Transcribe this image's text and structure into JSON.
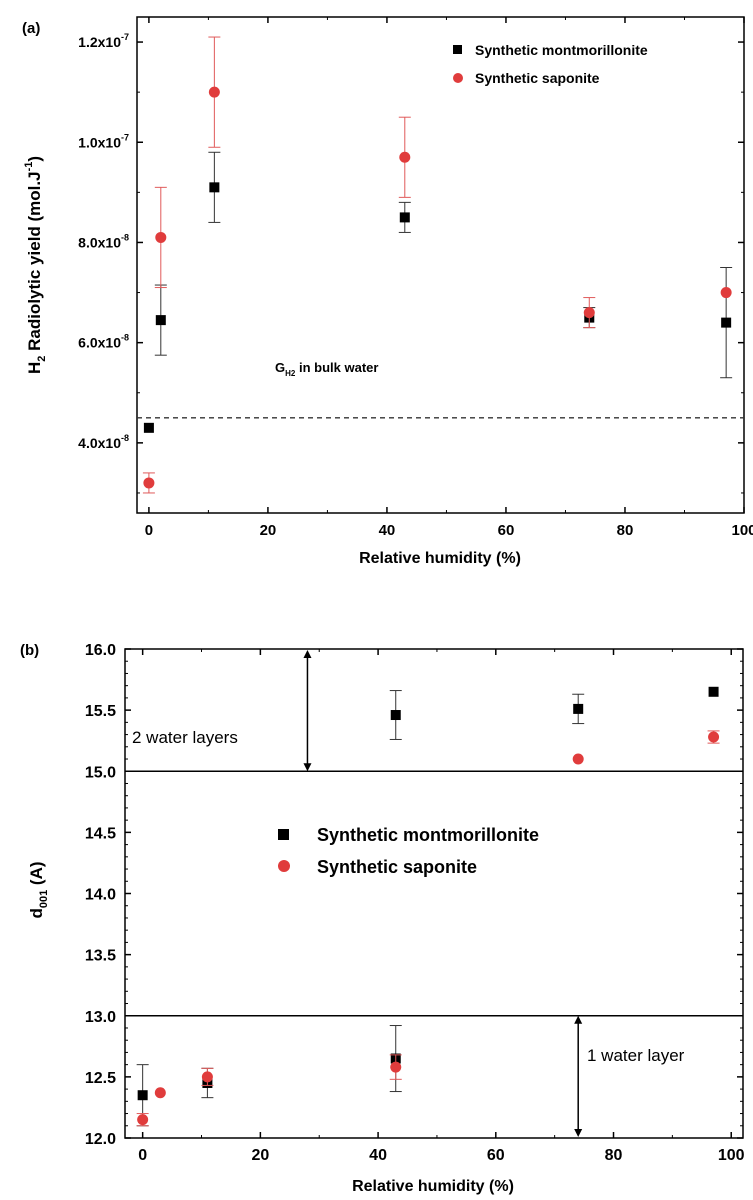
{
  "chart_data": [
    {
      "panel": "(a)",
      "type": "scatter",
      "xlabel": "Relative humidity (%)",
      "ylabel": "H2 Radiolytic yield (mol.J-1)",
      "ylabel_parts": {
        "base": "H",
        "sub": "2",
        "mid": " Radiolytic yield (mol.J",
        "sup": "-1",
        "end": ")"
      },
      "xlim": [
        -2,
        100
      ],
      "ylim": [
        2.6e-08,
        1.25e-07
      ],
      "xticks": [
        "0",
        "20",
        "40",
        "60",
        "80",
        "100"
      ],
      "xtick_values": [
        0,
        20,
        40,
        60,
        80,
        100
      ],
      "yticks": [
        {
          "value": 4e-08,
          "mant": "4.0x10",
          "exp": "-8"
        },
        {
          "value": 6e-08,
          "mant": "6.0x10",
          "exp": "-8"
        },
        {
          "value": 8e-08,
          "mant": "8.0x10",
          "exp": "-8"
        },
        {
          "value": 1e-07,
          "mant": "1.0x10",
          "exp": "-7"
        },
        {
          "value": 1.2e-07,
          "mant": "1.2x10",
          "exp": "-7"
        }
      ],
      "ref_line": {
        "y": 4.5e-08,
        "label_main": "G",
        "label_sub": "H2",
        "label_rest": " in bulk water"
      },
      "legend": "top-right",
      "series": [
        {
          "name": "Synthetic montmorillonite",
          "marker": "square",
          "color": "#000000",
          "points": [
            {
              "x": 0,
              "y": 4.3e-08,
              "err": 0
            },
            {
              "x": 2,
              "y": 6.45e-08,
              "err": 7e-09
            },
            {
              "x": 11,
              "y": 9.1e-08,
              "err": 7e-09
            },
            {
              "x": 43,
              "y": 8.5e-08,
              "err": 3e-09
            },
            {
              "x": 74,
              "y": 6.5e-08,
              "err": 2e-09
            },
            {
              "x": 97,
              "y": 6.4e-08,
              "err": 1.1e-08
            }
          ]
        },
        {
          "name": "Synthetic saponite",
          "marker": "circle",
          "color": "#e03c3c",
          "points": [
            {
              "x": 0,
              "y": 3.2e-08,
              "err": 2e-09
            },
            {
              "x": 2,
              "y": 8.1e-08,
              "err": 1e-08
            },
            {
              "x": 11,
              "y": 1.1e-07,
              "err": 1.1e-08
            },
            {
              "x": 43,
              "y": 9.7e-08,
              "err": 8e-09
            },
            {
              "x": 74,
              "y": 6.6e-08,
              "err": 3e-09
            },
            {
              "x": 97,
              "y": 7e-08,
              "err": 0
            }
          ]
        }
      ]
    },
    {
      "panel": "(b)",
      "type": "scatter",
      "xlabel": "Relative humidity (%)",
      "ylabel": "d001 (A)",
      "ylabel_parts": {
        "base": "d",
        "sub": "001",
        "end": " (A)"
      },
      "xlim": [
        -3,
        102
      ],
      "ylim": [
        12.0,
        16.0
      ],
      "xticks": [
        "0",
        "20",
        "40",
        "60",
        "80",
        "100"
      ],
      "xtick_values": [
        0,
        20,
        40,
        60,
        80,
        100
      ],
      "yticks": [
        "12.0",
        "12.5",
        "13.0",
        "13.5",
        "14.0",
        "14.5",
        "15.0",
        "15.5",
        "16.0"
      ],
      "ytick_values": [
        12.0,
        12.5,
        13.0,
        13.5,
        14.0,
        14.5,
        15.0,
        15.5,
        16.0
      ],
      "hlines": [
        15.0,
        13.0
      ],
      "annotations": [
        "2 water layers",
        "1 water layer"
      ],
      "legend": "center",
      "series": [
        {
          "name": "Synthetic montmorillonite",
          "marker": "square",
          "color": "#000000",
          "points": [
            {
              "x": 0,
              "y": 12.35,
              "err": 0.25
            },
            {
              "x": 11,
              "y": 12.45,
              "err": 0.12
            },
            {
              "x": 43,
              "y": 12.65,
              "err": 0.27
            },
            {
              "x": 43,
              "y": 15.46,
              "err": 0.2
            },
            {
              "x": 74,
              "y": 15.51,
              "err": 0.12
            },
            {
              "x": 97,
              "y": 15.65,
              "err": 0
            }
          ]
        },
        {
          "name": "Synthetic saponite",
          "marker": "circle",
          "color": "#e03c3c",
          "points": [
            {
              "x": 0,
              "y": 12.15,
              "err": 0.05
            },
            {
              "x": 3,
              "y": 12.37,
              "err": 0
            },
            {
              "x": 11,
              "y": 12.5,
              "err": 0.07
            },
            {
              "x": 43,
              "y": 12.58,
              "err": 0.1
            },
            {
              "x": 74,
              "y": 15.1,
              "err": 0
            },
            {
              "x": 97,
              "y": 15.28,
              "err": 0.05
            }
          ]
        }
      ]
    }
  ]
}
